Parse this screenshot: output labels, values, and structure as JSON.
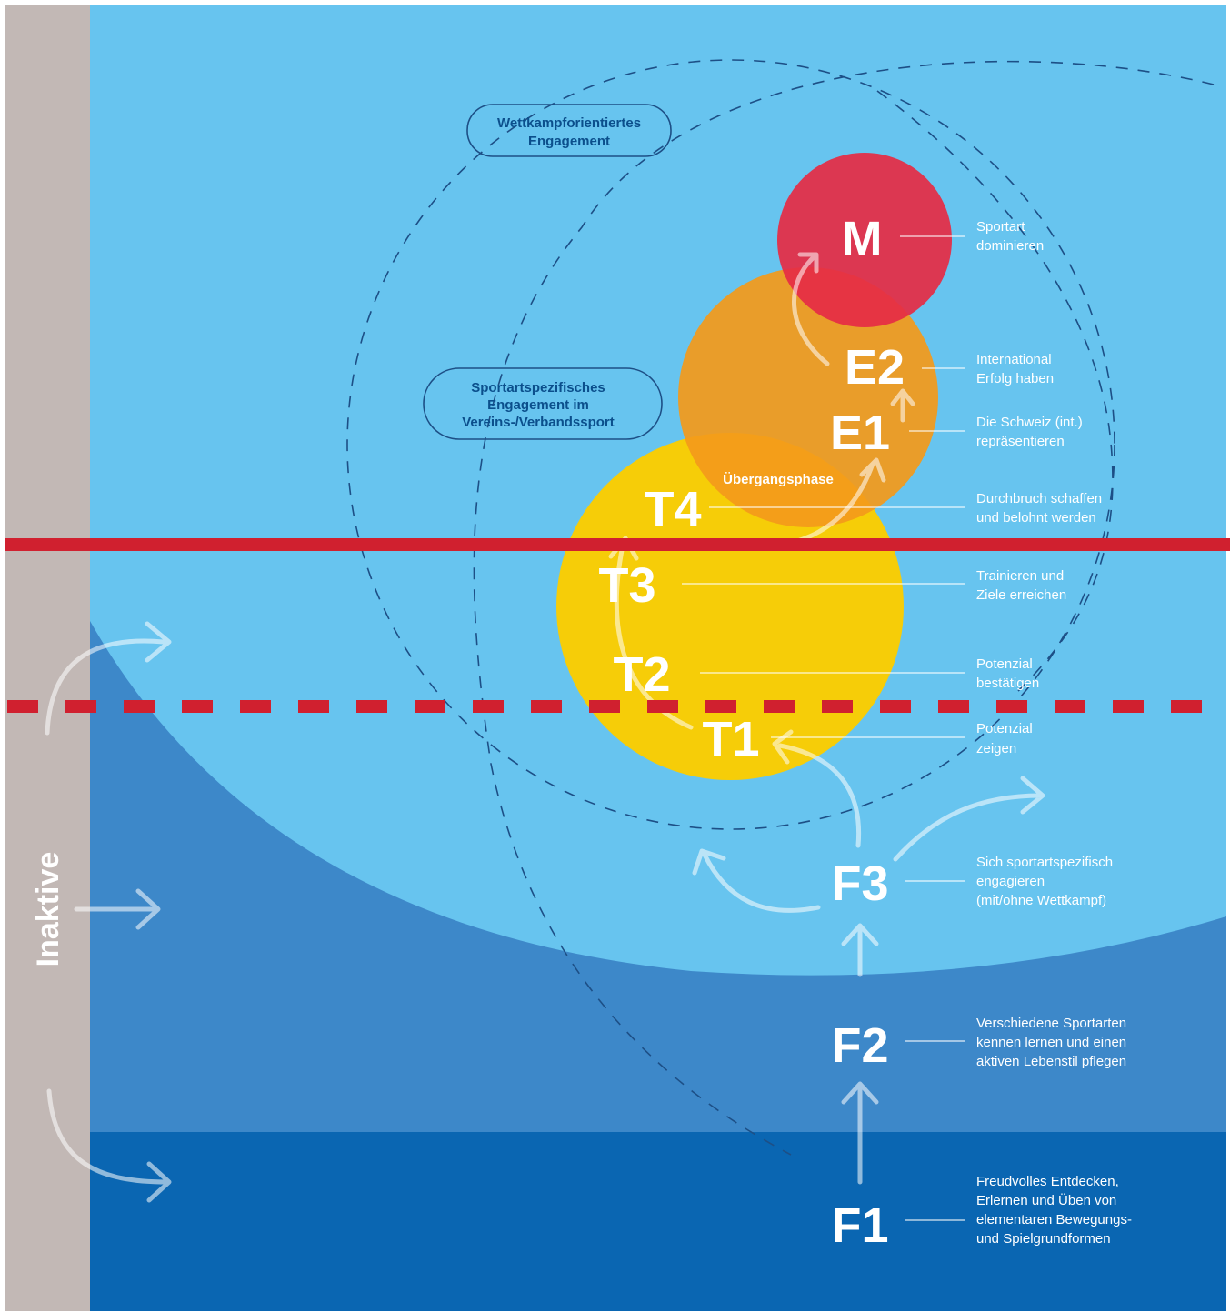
{
  "side_label": "Inaktive",
  "pills": {
    "competitive": [
      "Wettkampforientiertes",
      "Engagement"
    ],
    "sport_specific": [
      "Sportartspezifisches",
      "Engagement im",
      "Vereins-/Verbandssport"
    ]
  },
  "transition_label": "Übergangsphase",
  "stages": [
    {
      "id": "M",
      "label": "M",
      "desc": [
        "Sportart",
        "dominieren"
      ]
    },
    {
      "id": "E2",
      "label": "E2",
      "desc": [
        "International",
        "Erfolg haben"
      ]
    },
    {
      "id": "E1",
      "label": "E1",
      "desc": [
        "Die Schweiz (int.)",
        "repräsentieren"
      ]
    },
    {
      "id": "T4",
      "label": "T4",
      "desc": [
        "Durchbruch schaffen",
        "und belohnt werden"
      ]
    },
    {
      "id": "T3",
      "label": "T3",
      "desc": [
        "Trainieren und",
        "Ziele erreichen"
      ]
    },
    {
      "id": "T2",
      "label": "T2",
      "desc": [
        "Potenzial",
        "bestätigen"
      ]
    },
    {
      "id": "T1",
      "label": "T1",
      "desc": [
        "Potenzial",
        "zeigen"
      ]
    },
    {
      "id": "F3",
      "label": "F3",
      "desc": [
        "Sich sportartspezifisch",
        "engagieren",
        "(mit/ohne Wettkampf)"
      ]
    },
    {
      "id": "F2",
      "label": "F2",
      "desc": [
        "Verschiedene Sportarten",
        "kennen lernen und einen",
        "aktiven Lebenstil pflegen"
      ]
    },
    {
      "id": "F1",
      "label": "F1",
      "desc": [
        "Freudvolles Entdecken,",
        "Erlernen und Üben von",
        "elementaren Bewegungs-",
        "und Spielgrundformen"
      ]
    }
  ],
  "colors": {
    "sky": "#67c4ef",
    "mid_blue": "#3d88c9",
    "deep_blue": "#0a66b2",
    "inactive_bar": "#c2b8b5",
    "circle_red": "#e52c45",
    "circle_orange": "#f39a1b",
    "circle_yellow": "#fbcd00",
    "marker_red": "#d0202f",
    "dash": "#1d4f86"
  }
}
